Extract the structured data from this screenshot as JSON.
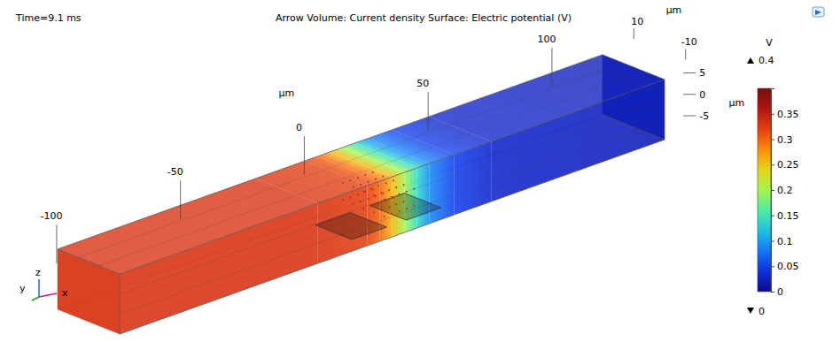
{
  "chart_data": {
    "type": "surface3d",
    "time_label": "Time=9.1 ms",
    "title": "Arrow Volume: Current density  Surface: Electric potential (V)",
    "box": {
      "xlim": [
        -110,
        110
      ],
      "ylim": [
        -12,
        12
      ],
      "zlim": [
        -7,
        7
      ]
    },
    "axes": {
      "x": {
        "label": "µm",
        "ticks": [
          -100,
          -50,
          0,
          50,
          100
        ]
      },
      "y": {
        "label": "µm",
        "ticks": [
          10,
          -10
        ]
      },
      "z": {
        "label": "µm",
        "ticks": [
          5,
          0,
          -5
        ]
      }
    },
    "triad": {
      "labels": [
        "x",
        "y",
        "z"
      ]
    },
    "surface": {
      "x": [
        -110,
        -30,
        -10,
        -5,
        0,
        5,
        10,
        15,
        25,
        40,
        110
      ],
      "values": [
        0.33,
        0.33,
        0.32,
        0.3,
        0.26,
        0.2,
        0.14,
        0.09,
        0.05,
        0.03,
        0.02
      ]
    },
    "colorbar": {
      "unit": "V",
      "range": [
        0,
        0.4
      ],
      "ticks": [
        0,
        0.05,
        0.1,
        0.15,
        0.2,
        0.25,
        0.3,
        0.35
      ],
      "max": 0.4,
      "min": 0
    }
  }
}
